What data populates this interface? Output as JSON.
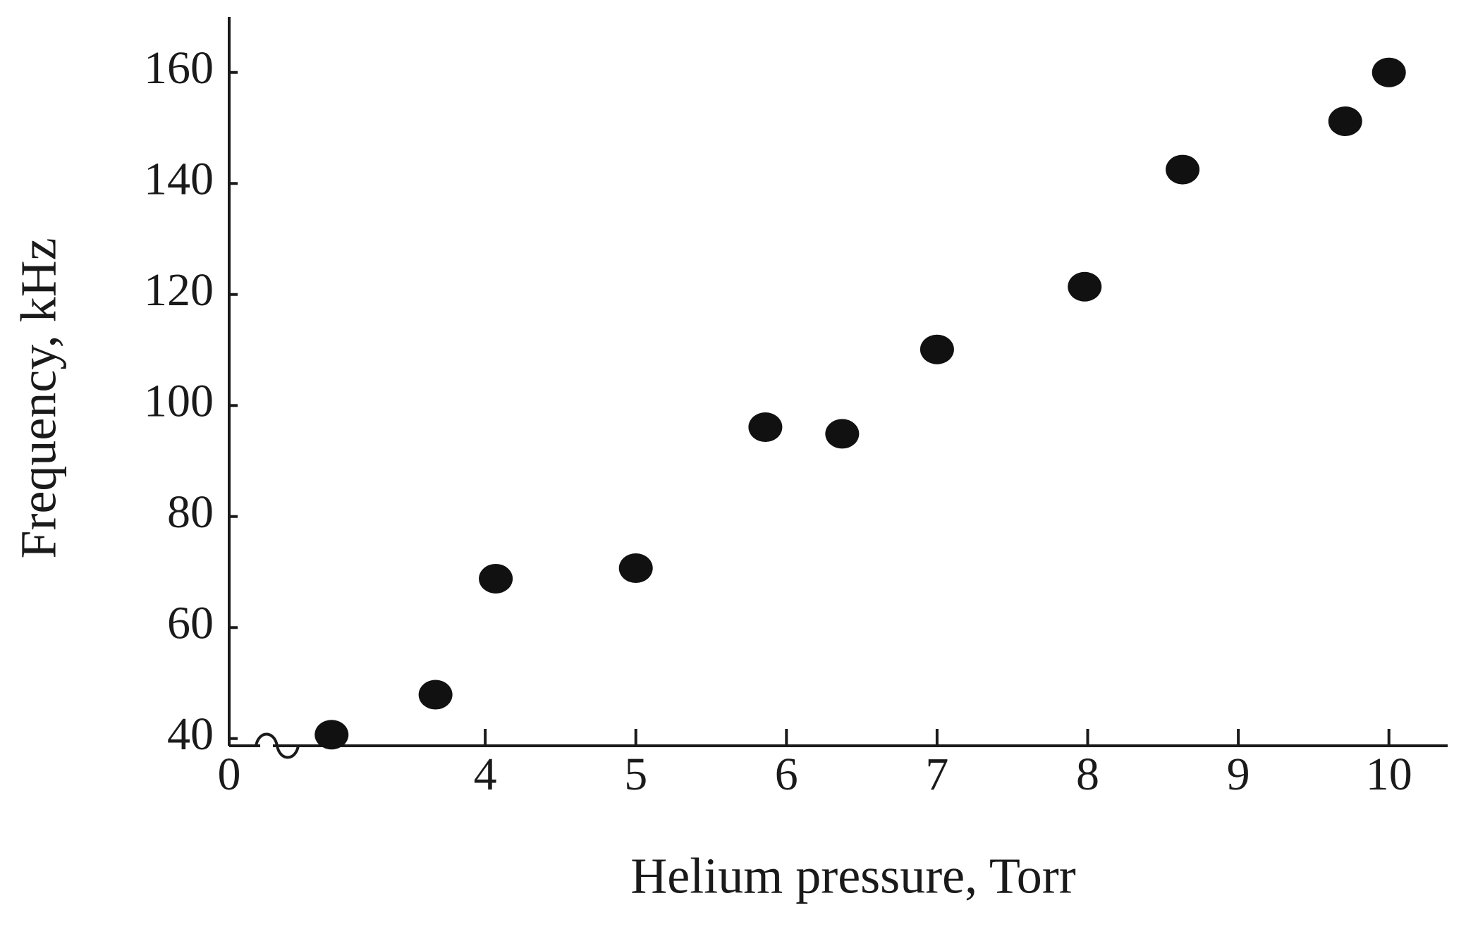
{
  "chart_data": {
    "type": "scatter",
    "x_label": "Helium pressure, Torr",
    "y_label": "Frequency, kHz",
    "x_origin_label": "0",
    "x_axis_break": true,
    "color": "#111111",
    "x": [
      2.98,
      3.67,
      4.07,
      5.0,
      5.86,
      6.37,
      7.0,
      7.98,
      8.63,
      9.71,
      10.0
    ],
    "values": [
      40.7,
      47.9,
      68.8,
      70.7,
      96.1,
      94.9,
      110.1,
      121.4,
      142.5,
      151.2,
      160.0
    ],
    "xlim": [
      2.3,
      10.39
    ],
    "ylim": [
      38.7,
      170
    ],
    "xticks": [
      4,
      5,
      6,
      7,
      8,
      9,
      10
    ],
    "yticks": [
      40,
      60,
      80,
      100,
      120,
      140,
      160
    ]
  }
}
